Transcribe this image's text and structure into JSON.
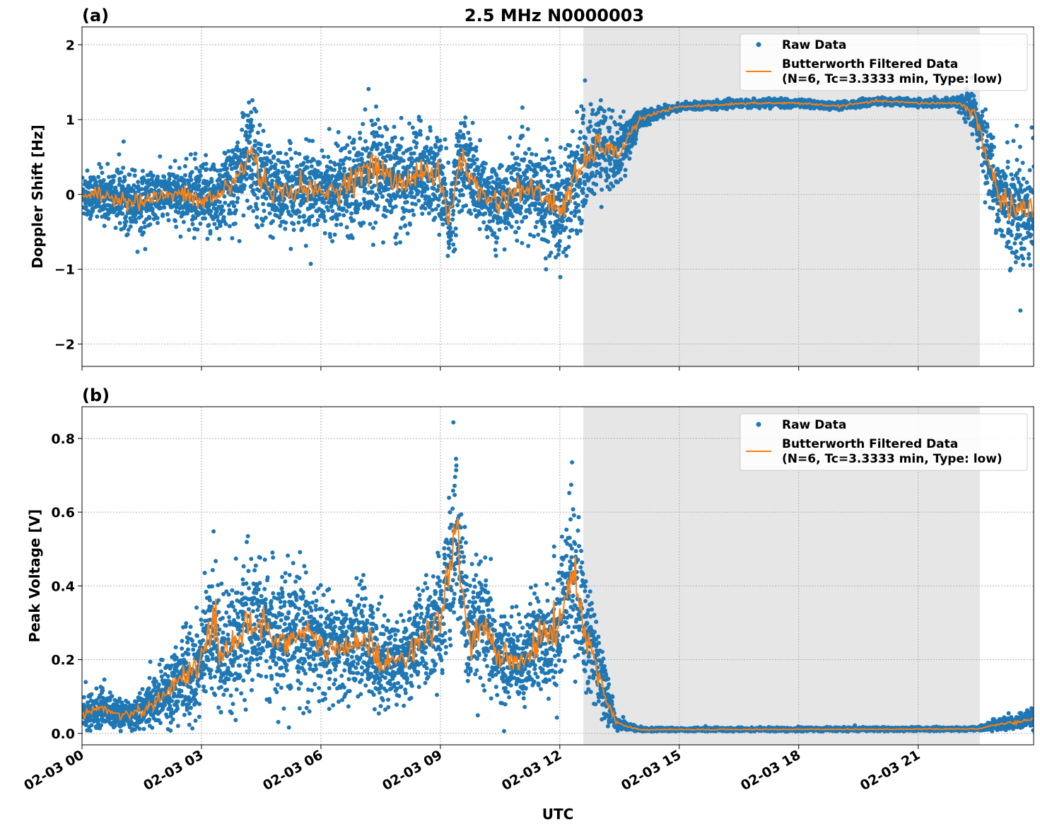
{
  "chart_data": [
    {
      "type": "scatter",
      "panel_label": "(a)",
      "title": "2.5 MHz N0000003",
      "xlabel": "",
      "ylabel": "Doppler Shift [Hz]",
      "xlim_hours": [
        0,
        23.9
      ],
      "ylim": [
        -2.3,
        2.24
      ],
      "yticks": [
        2,
        1,
        0,
        -1,
        -2
      ],
      "ytick_labels": [
        "2",
        "1",
        "0",
        "−1",
        "−2"
      ],
      "grid": true,
      "legend_position": "top-right",
      "shaded_interval_hours": [
        12.59,
        22.55
      ],
      "shade_color": "#e6e6e6",
      "series": [
        {
          "name": "Raw Data",
          "kind": "points",
          "color": "#1f77b4"
        },
        {
          "name": "Butterworth Filtered Data",
          "name_line2": "(N=6, Tc=3.3333 min, Type: low)",
          "kind": "line",
          "color": "#ff7f0e"
        }
      ],
      "x_hours": [
        0,
        0.5,
        1,
        1.5,
        2,
        2.5,
        3,
        3.5,
        4,
        4.25,
        4.5,
        5,
        5.5,
        6,
        6.5,
        7,
        7.5,
        8,
        8.5,
        9,
        9.2,
        9.5,
        10,
        10.5,
        11,
        11.5,
        12,
        12.5,
        13,
        13.4,
        14,
        14.5,
        15,
        16,
        17,
        18,
        19,
        20,
        21,
        22,
        22.4,
        22.8,
        23,
        23.5,
        23.9
      ],
      "filtered": [
        0,
        -0.02,
        -0.05,
        -0.1,
        -0.02,
        0,
        -0.1,
        0,
        0.3,
        0.6,
        0.2,
        0,
        0.1,
        0,
        0.1,
        0.3,
        0.35,
        0.1,
        0.35,
        0.2,
        -0.4,
        0.5,
        0,
        -0.1,
        0.1,
        0,
        -0.2,
        0.3,
        0.7,
        0.5,
        1.0,
        1.1,
        1.17,
        1.2,
        1.22,
        1.22,
        1.18,
        1.25,
        1.22,
        1.22,
        1.1,
        0.4,
        0,
        -0.2,
        -0.2
      ],
      "raw_spread": [
        0.2,
        0.2,
        0.25,
        0.25,
        0.2,
        0.25,
        0.3,
        0.35,
        0.4,
        0.5,
        0.4,
        0.3,
        0.35,
        0.3,
        0.35,
        0.4,
        0.4,
        0.4,
        0.4,
        0.35,
        0.4,
        0.4,
        0.35,
        0.35,
        0.35,
        0.35,
        0.5,
        0.45,
        0.35,
        0.3,
        0.08,
        0.04,
        0.03,
        0.03,
        0.03,
        0.03,
        0.03,
        0.03,
        0.03,
        0.04,
        0.2,
        0.3,
        0.3,
        0.5,
        0.5
      ]
    },
    {
      "type": "scatter",
      "panel_label": "(b)",
      "xlabel": "UTC",
      "ylabel": "Peak Voltage [V]",
      "xlim_hours": [
        0,
        23.9
      ],
      "ylim": [
        -0.031,
        0.886
      ],
      "yticks": [
        0.8,
        0.6,
        0.4,
        0.2,
        0.0
      ],
      "ytick_labels": [
        "0.8",
        "0.6",
        "0.4",
        "0.2",
        "0.0"
      ],
      "xtick_hours": [
        0,
        3,
        6,
        9,
        12,
        15,
        18,
        21
      ],
      "xtick_labels": [
        "02-03 00",
        "02-03 03",
        "02-03 06",
        "02-03 09",
        "02-03 12",
        "02-03 15",
        "02-03 18",
        "02-03 21"
      ],
      "grid": true,
      "legend_position": "top-right",
      "shaded_interval_hours": [
        12.59,
        22.55
      ],
      "series": [
        {
          "name": "Raw Data",
          "kind": "points",
          "color": "#1f77b4"
        },
        {
          "name": "Butterworth Filtered Data",
          "name_line2": "(N=6, Tc=3.3333 min, Type: low)",
          "kind": "line",
          "color": "#ff7f0e"
        }
      ],
      "x_hours": [
        0,
        0.5,
        1,
        1.5,
        2,
        2.5,
        3,
        3.3,
        3.5,
        4,
        4.5,
        5,
        5.5,
        6,
        6.5,
        7,
        7.5,
        8,
        8.5,
        9,
        9.4,
        9.7,
        10,
        10.5,
        11,
        11.5,
        12,
        12.3,
        12.6,
        13,
        13.4,
        14,
        22.5,
        23,
        23.5,
        23.9
      ],
      "filtered": [
        0.05,
        0.07,
        0.05,
        0.06,
        0.1,
        0.15,
        0.2,
        0.3,
        0.22,
        0.27,
        0.3,
        0.25,
        0.27,
        0.24,
        0.22,
        0.26,
        0.2,
        0.2,
        0.25,
        0.3,
        0.55,
        0.25,
        0.3,
        0.2,
        0.2,
        0.25,
        0.3,
        0.45,
        0.3,
        0.15,
        0.03,
        0.01,
        0.012,
        0.025,
        0.03,
        0.04
      ],
      "raw_spread": [
        0.03,
        0.03,
        0.025,
        0.03,
        0.05,
        0.07,
        0.09,
        0.12,
        0.1,
        0.1,
        0.1,
        0.1,
        0.1,
        0.09,
        0.08,
        0.09,
        0.08,
        0.07,
        0.08,
        0.1,
        0.15,
        0.1,
        0.1,
        0.08,
        0.07,
        0.09,
        0.12,
        0.12,
        0.12,
        0.06,
        0.01,
        0.003,
        0.003,
        0.01,
        0.012,
        0.015
      ]
    }
  ]
}
